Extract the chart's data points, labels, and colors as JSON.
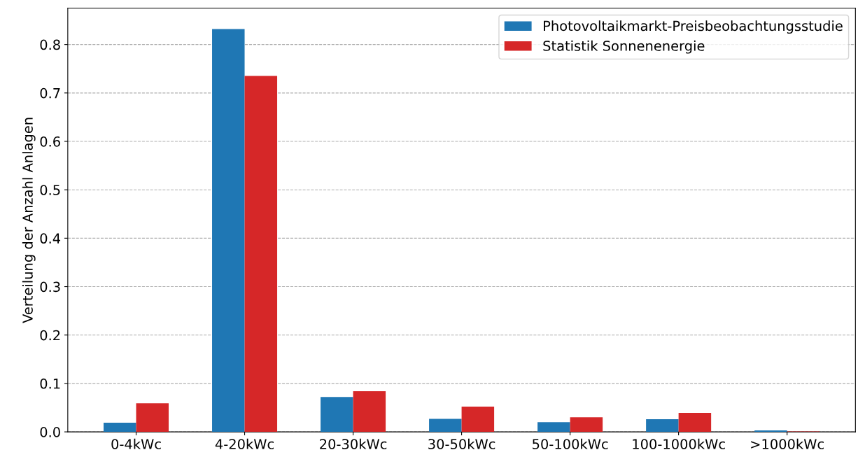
{
  "chart_data": {
    "type": "bar",
    "ylabel": "Verteilung der Anzahl Anlagen",
    "categories": [
      "0-4kWc",
      "4-20kWc",
      "20-30kWc",
      "30-50kWc",
      "50-100kWc",
      "100-1000kWc",
      ">1000kWc"
    ],
    "series": [
      {
        "name": "Photovoltaikmarkt-Preisbeobachtungsstudie",
        "color": "#1f77b4",
        "values": [
          0.019,
          0.832,
          0.072,
          0.027,
          0.02,
          0.026,
          0.003
        ]
      },
      {
        "name": "Statistik Sonnenenergie",
        "color": "#d62728",
        "values": [
          0.059,
          0.735,
          0.084,
          0.052,
          0.03,
          0.039,
          0.001
        ]
      }
    ],
    "ylim": [
      0,
      0.875
    ],
    "yticks": [
      {
        "value": 0,
        "label": "0.0"
      },
      0.1,
      0.2,
      0.3,
      0.4,
      0.5,
      0.6,
      0.7,
      0.8
    ],
    "grid": "y",
    "line_style": "dashed",
    "legend": "top right"
  }
}
